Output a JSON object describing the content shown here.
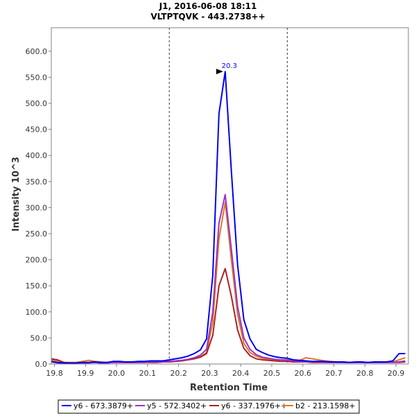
{
  "colors": {
    "axis": "#808080",
    "background": "#ffffff",
    "peak_label": "#0000ff"
  },
  "chart_data": {
    "type": "line",
    "title": "J1, 2016-06-08 18:11",
    "subtitle": "VLTPTQVK - 443.2738++",
    "xlabel": "Retention Time",
    "ylabel": "Intensity 10^3",
    "xlim": [
      19.79,
      20.94
    ],
    "ylim": [
      0,
      645
    ],
    "x_ticks": [
      "19.8",
      "19.9",
      "20.0",
      "20.1",
      "20.2",
      "20.3",
      "20.4",
      "20.5",
      "20.6",
      "20.7",
      "20.8",
      "20.9"
    ],
    "y_ticks": [
      "0.0",
      "50.0",
      "100.0",
      "150.0",
      "200.0",
      "250.0",
      "300.0",
      "350.0",
      "400.0",
      "450.0",
      "500.0",
      "550.0",
      "600.0"
    ],
    "boundaries": [
      20.17,
      20.55
    ],
    "peak_annotation": {
      "x": 20.35,
      "y": 561,
      "label": "20.3"
    },
    "legend_position": "bottom",
    "series": [
      {
        "name": "y6 - 673.3879+",
        "color": "#0000ee",
        "x": [
          19.79,
          19.81,
          19.83,
          19.85,
          19.87,
          19.89,
          19.91,
          19.93,
          19.95,
          19.97,
          19.99,
          20.01,
          20.03,
          20.05,
          20.07,
          20.09,
          20.11,
          20.13,
          20.15,
          20.17,
          20.19,
          20.21,
          20.23,
          20.25,
          20.27,
          20.29,
          20.31,
          20.33,
          20.35,
          20.37,
          20.39,
          20.41,
          20.43,
          20.45,
          20.47,
          20.49,
          20.51,
          20.53,
          20.55,
          20.57,
          20.59,
          20.61,
          20.63,
          20.65,
          20.67,
          20.69,
          20.71,
          20.73,
          20.75,
          20.77,
          20.79,
          20.81,
          20.83,
          20.85,
          20.87,
          20.89,
          20.91,
          20.93
        ],
        "values": [
          5,
          3,
          2,
          2,
          2,
          3,
          3,
          4,
          3,
          3,
          5,
          5,
          4,
          4,
          5,
          5,
          6,
          6,
          6,
          8,
          10,
          12,
          15,
          20,
          27,
          48,
          170,
          480,
          561,
          370,
          190,
          85,
          48,
          28,
          22,
          17,
          14,
          12,
          11,
          8,
          7,
          6,
          5,
          5,
          5,
          4,
          4,
          4,
          3,
          4,
          4,
          3,
          4,
          4,
          4,
          6,
          20,
          20
        ]
      },
      {
        "name": "y5 - 572.3402+",
        "color": "#9933cc",
        "x": [
          19.79,
          19.81,
          19.83,
          19.85,
          19.87,
          19.89,
          19.91,
          19.93,
          19.95,
          19.97,
          19.99,
          20.01,
          20.03,
          20.05,
          20.07,
          20.09,
          20.11,
          20.13,
          20.15,
          20.17,
          20.19,
          20.21,
          20.23,
          20.25,
          20.27,
          20.29,
          20.31,
          20.33,
          20.35,
          20.37,
          20.39,
          20.41,
          20.43,
          20.45,
          20.47,
          20.49,
          20.51,
          20.53,
          20.55,
          20.57,
          20.59,
          20.61,
          20.63,
          20.65,
          20.67,
          20.69,
          20.71,
          20.73,
          20.75,
          20.77,
          20.79,
          20.81,
          20.83,
          20.85,
          20.87,
          20.89,
          20.91,
          20.93
        ],
        "values": [
          4,
          2,
          2,
          2,
          2,
          2,
          2,
          3,
          2,
          2,
          3,
          3,
          3,
          3,
          3,
          3,
          4,
          4,
          4,
          5,
          6,
          7,
          9,
          12,
          17,
          28,
          100,
          270,
          325,
          220,
          110,
          50,
          28,
          18,
          13,
          11,
          9,
          8,
          7,
          6,
          5,
          4,
          4,
          4,
          3,
          3,
          3,
          3,
          3,
          3,
          3,
          3,
          3,
          3,
          3,
          3,
          4,
          6
        ]
      },
      {
        "name": "y6 - 337.1976++",
        "color": "#aa2222",
        "x": [
          19.79,
          19.81,
          19.83,
          19.85,
          19.87,
          19.89,
          19.91,
          19.93,
          19.95,
          19.97,
          19.99,
          20.01,
          20.03,
          20.05,
          20.07,
          20.09,
          20.11,
          20.13,
          20.15,
          20.17,
          20.19,
          20.21,
          20.23,
          20.25,
          20.27,
          20.29,
          20.31,
          20.33,
          20.35,
          20.37,
          20.39,
          20.41,
          20.43,
          20.45,
          20.47,
          20.49,
          20.51,
          20.53,
          20.55,
          20.57,
          20.59,
          20.61,
          20.63,
          20.65,
          20.67,
          20.69,
          20.71,
          20.73,
          20.75,
          20.77,
          20.79,
          20.81,
          20.83,
          20.85,
          20.87,
          20.89,
          20.91,
          20.93
        ],
        "values": [
          10,
          8,
          3,
          2,
          2,
          3,
          3,
          3,
          2,
          2,
          3,
          3,
          3,
          3,
          3,
          3,
          3,
          3,
          4,
          4,
          5,
          6,
          8,
          10,
          13,
          20,
          55,
          150,
          183,
          130,
          65,
          30,
          16,
          10,
          8,
          7,
          6,
          5,
          5,
          4,
          4,
          4,
          3,
          3,
          3,
          3,
          3,
          3,
          3,
          3,
          3,
          3,
          3,
          3,
          3,
          3,
          3,
          4
        ]
      },
      {
        "name": "b2 - 213.1598+",
        "color": "#dd7722",
        "x": [
          19.79,
          19.81,
          19.83,
          19.85,
          19.87,
          19.89,
          19.91,
          19.93,
          19.95,
          19.97,
          19.99,
          20.01,
          20.03,
          20.05,
          20.07,
          20.09,
          20.11,
          20.13,
          20.15,
          20.17,
          20.19,
          20.21,
          20.23,
          20.25,
          20.27,
          20.29,
          20.31,
          20.33,
          20.35,
          20.37,
          20.39,
          20.41,
          20.43,
          20.45,
          20.47,
          20.49,
          20.51,
          20.53,
          20.55,
          20.57,
          20.59,
          20.61,
          20.63,
          20.65,
          20.67,
          20.69,
          20.71,
          20.73,
          20.75,
          20.77,
          20.79,
          20.81,
          20.83,
          20.85,
          20.87,
          20.89,
          20.91,
          20.93
        ],
        "values": [
          8,
          6,
          3,
          3,
          3,
          5,
          7,
          5,
          4,
          3,
          4,
          4,
          3,
          3,
          3,
          4,
          4,
          4,
          4,
          5,
          6,
          7,
          8,
          10,
          14,
          22,
          80,
          240,
          310,
          200,
          95,
          40,
          22,
          15,
          11,
          9,
          8,
          8,
          8,
          7,
          7,
          12,
          10,
          8,
          6,
          5,
          4,
          4,
          3,
          3,
          3,
          3,
          3,
          3,
          3,
          4,
          8,
          12
        ]
      }
    ]
  }
}
